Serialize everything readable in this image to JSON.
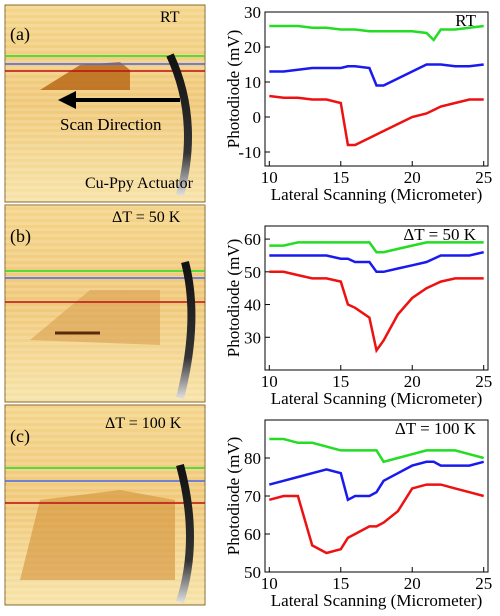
{
  "images": [
    {
      "label": "(a)",
      "condition": "RT",
      "annotations": [
        "Scan Direction",
        "Cu-Ppy Actuator"
      ]
    },
    {
      "label": "(b)",
      "condition": "ΔT = 50 K"
    },
    {
      "label": "(c)",
      "condition": "ΔT = 100 K"
    }
  ],
  "chart_data": [
    {
      "type": "line",
      "annotation": "RT",
      "ylabel": "Photodiode (mV)",
      "xlabel": "Lateral Scanning (Micrometer)",
      "x": [
        10,
        11,
        12,
        13,
        14,
        15,
        15.5,
        16,
        17,
        17.5,
        18,
        19,
        20,
        21,
        21.5,
        22,
        23,
        24,
        25
      ],
      "xlim": [
        9.7,
        25.3
      ],
      "xticks": [
        10,
        15,
        20,
        25
      ],
      "ylim": [
        -14,
        30
      ],
      "yticks": [
        -10,
        0,
        10,
        20,
        30
      ],
      "series": [
        {
          "color": "#22dd22",
          "values": [
            26,
            26,
            26,
            25.5,
            25.5,
            25,
            25,
            25,
            24.5,
            24.5,
            24.5,
            24.5,
            24.5,
            24,
            22,
            25,
            25,
            25.5,
            26
          ]
        },
        {
          "color": "#1a1aee",
          "values": [
            13,
            13,
            13.5,
            14,
            14,
            14,
            14.5,
            14.5,
            14,
            9,
            9,
            11,
            13,
            15,
            15,
            15,
            14.5,
            14.5,
            15
          ]
        },
        {
          "color": "#ee1111",
          "values": [
            6,
            5.5,
            5.5,
            5,
            5,
            4,
            -8,
            -8,
            -6,
            -5,
            -4,
            -2,
            0,
            1,
            2,
            3,
            4,
            5,
            5
          ]
        }
      ]
    },
    {
      "type": "line",
      "annotation": "ΔT = 50 K",
      "ylabel": "Photodiode (mV)",
      "xlabel": "Lateral Scanning (Micrometer)",
      "x": [
        10,
        11,
        12,
        13,
        14,
        15,
        15.5,
        16,
        17,
        17.5,
        18,
        19,
        20,
        21,
        21.5,
        22,
        23,
        24,
        25
      ],
      "xlim": [
        9.7,
        25.3
      ],
      "xticks": [
        10,
        15,
        20,
        25
      ],
      "ylim": [
        20,
        64
      ],
      "yticks": [
        30,
        40,
        50,
        60
      ],
      "series": [
        {
          "color": "#22dd22",
          "values": [
            58,
            58,
            59,
            59,
            59,
            59,
            59,
            59,
            59,
            56,
            56,
            57,
            58,
            59,
            59,
            59,
            59,
            59,
            59
          ]
        },
        {
          "color": "#1a1aee",
          "values": [
            55,
            55,
            55,
            55,
            55,
            54,
            54,
            53,
            53,
            50,
            50,
            51,
            52,
            53,
            54,
            55,
            55,
            55,
            56
          ]
        },
        {
          "color": "#ee1111",
          "values": [
            50,
            50,
            49,
            48,
            48,
            47,
            40,
            39,
            36,
            26,
            29,
            37,
            42,
            45,
            46,
            47,
            48,
            48,
            48
          ]
        }
      ]
    },
    {
      "type": "line",
      "annotation": "ΔT = 100 K",
      "ylabel": "Photodiode (mV)",
      "xlabel": "Lateral Scanning (Micrometer)",
      "x": [
        10,
        11,
        12,
        13,
        14,
        15,
        15.5,
        16,
        17,
        17.5,
        18,
        19,
        20,
        21,
        21.5,
        22,
        23,
        24,
        25
      ],
      "xlim": [
        9.7,
        25.3
      ],
      "xticks": [
        10,
        15,
        20,
        25
      ],
      "ylim": [
        50,
        90
      ],
      "yticks": [
        50,
        60,
        70,
        80
      ],
      "series": [
        {
          "color": "#22dd22",
          "values": [
            85,
            85,
            84,
            84,
            83,
            82,
            82,
            82,
            82,
            82,
            79,
            80,
            81,
            82,
            82,
            82,
            82,
            81,
            80
          ]
        },
        {
          "color": "#1a1aee",
          "values": [
            73,
            74,
            75,
            76,
            77,
            76,
            69,
            70,
            70,
            71,
            74,
            76,
            78,
            79,
            79,
            78,
            78,
            78,
            79
          ]
        },
        {
          "color": "#ee1111",
          "values": [
            69,
            70,
            70,
            57,
            55,
            56,
            59,
            60,
            62,
            62,
            63,
            66,
            72,
            73,
            73,
            73,
            72,
            71,
            70
          ]
        }
      ]
    }
  ]
}
